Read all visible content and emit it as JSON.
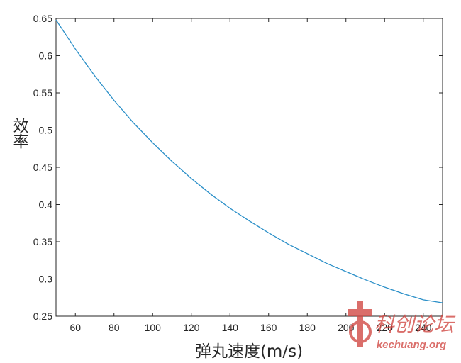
{
  "chart_data": {
    "type": "line",
    "title": "",
    "xlabel": "弹丸速度(m/s)",
    "ylabel": "效率",
    "xlim": [
      50,
      250
    ],
    "ylim": [
      0.25,
      0.65
    ],
    "xticks": [
      60,
      80,
      100,
      120,
      140,
      160,
      180,
      200,
      220,
      240
    ],
    "xtick_labels": [
      "60",
      "80",
      "100",
      "120",
      "140",
      "160",
      "180",
      "200",
      "220",
      "240"
    ],
    "yticks": [
      0.25,
      0.3,
      0.35,
      0.4,
      0.45,
      0.5,
      0.55,
      0.6,
      0.65
    ],
    "ytick_labels": [
      "0.25",
      "0.3",
      "0.35",
      "0.4",
      "0.45",
      "0.5",
      "0.55",
      "0.6",
      "0.65"
    ],
    "grid": false,
    "legend": "none",
    "line_color": "#2a8fc8",
    "series": [
      {
        "x": [
          50,
          60,
          70,
          80,
          90,
          100,
          110,
          120,
          130,
          140,
          150,
          160,
          170,
          180,
          190,
          200,
          210,
          220,
          230,
          240,
          250
        ],
        "values": [
          0.648,
          0.609,
          0.573,
          0.54,
          0.51,
          0.483,
          0.458,
          0.435,
          0.414,
          0.395,
          0.378,
          0.362,
          0.347,
          0.334,
          0.321,
          0.31,
          0.299,
          0.289,
          0.28,
          0.272,
          0.268
        ]
      }
    ]
  },
  "watermark": {
    "text": "科创论坛",
    "url": "kechuang.org",
    "color": "#d24a45"
  }
}
